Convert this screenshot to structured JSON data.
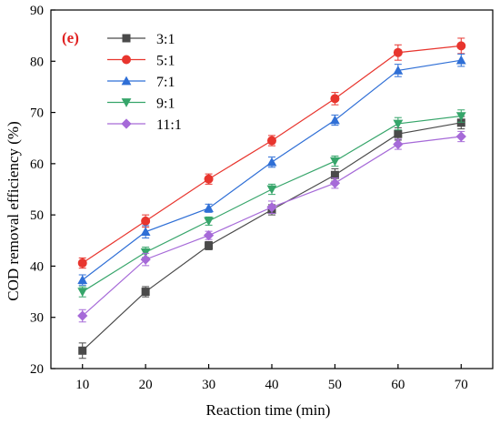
{
  "chart_data": {
    "type": "line",
    "panel_label": "(e)",
    "xlabel": "Reaction time (min)",
    "ylabel": "COD removal efficiency (%)",
    "x": [
      10,
      20,
      30,
      40,
      50,
      60,
      70
    ],
    "xlim": [
      5,
      75
    ],
    "ylim": [
      20,
      90
    ],
    "xticks": [
      10,
      20,
      30,
      40,
      50,
      60,
      70
    ],
    "yticks": [
      20,
      30,
      40,
      50,
      60,
      70,
      80,
      90
    ],
    "grid": false,
    "legend_position": "top-left",
    "series": [
      {
        "name": "3:1",
        "color": "#4a4a4a",
        "marker": "square",
        "values": [
          23.5,
          35.0,
          44.0,
          51.0,
          57.8,
          65.8,
          68.0
        ],
        "errors": [
          1.5,
          1.0,
          0.8,
          1.0,
          1.2,
          1.2,
          1.2
        ]
      },
      {
        "name": "5:1",
        "color": "#e8352e",
        "marker": "circle",
        "values": [
          40.6,
          48.8,
          57.0,
          64.5,
          72.7,
          81.7,
          83.0
        ],
        "errors": [
          1.0,
          1.2,
          1.0,
          1.0,
          1.2,
          1.5,
          1.5
        ]
      },
      {
        "name": "7:1",
        "color": "#2f6fd6",
        "marker": "triangle-up",
        "values": [
          37.3,
          46.7,
          51.3,
          60.3,
          68.5,
          78.2,
          80.2
        ],
        "errors": [
          1.0,
          1.2,
          0.8,
          1.0,
          1.0,
          1.2,
          1.2
        ]
      },
      {
        "name": "9:1",
        "color": "#36a56a",
        "marker": "triangle-down",
        "values": [
          35.0,
          42.7,
          48.8,
          55.0,
          60.5,
          67.8,
          69.3
        ],
        "errors": [
          1.0,
          1.0,
          0.8,
          1.0,
          1.0,
          1.2,
          1.2
        ]
      },
      {
        "name": "11:1",
        "color": "#a66ad8",
        "marker": "diamond",
        "values": [
          30.3,
          41.3,
          46.0,
          51.5,
          56.2,
          63.8,
          65.3
        ],
        "errors": [
          1.2,
          1.2,
          0.8,
          1.2,
          1.0,
          1.0,
          1.0
        ]
      }
    ]
  }
}
